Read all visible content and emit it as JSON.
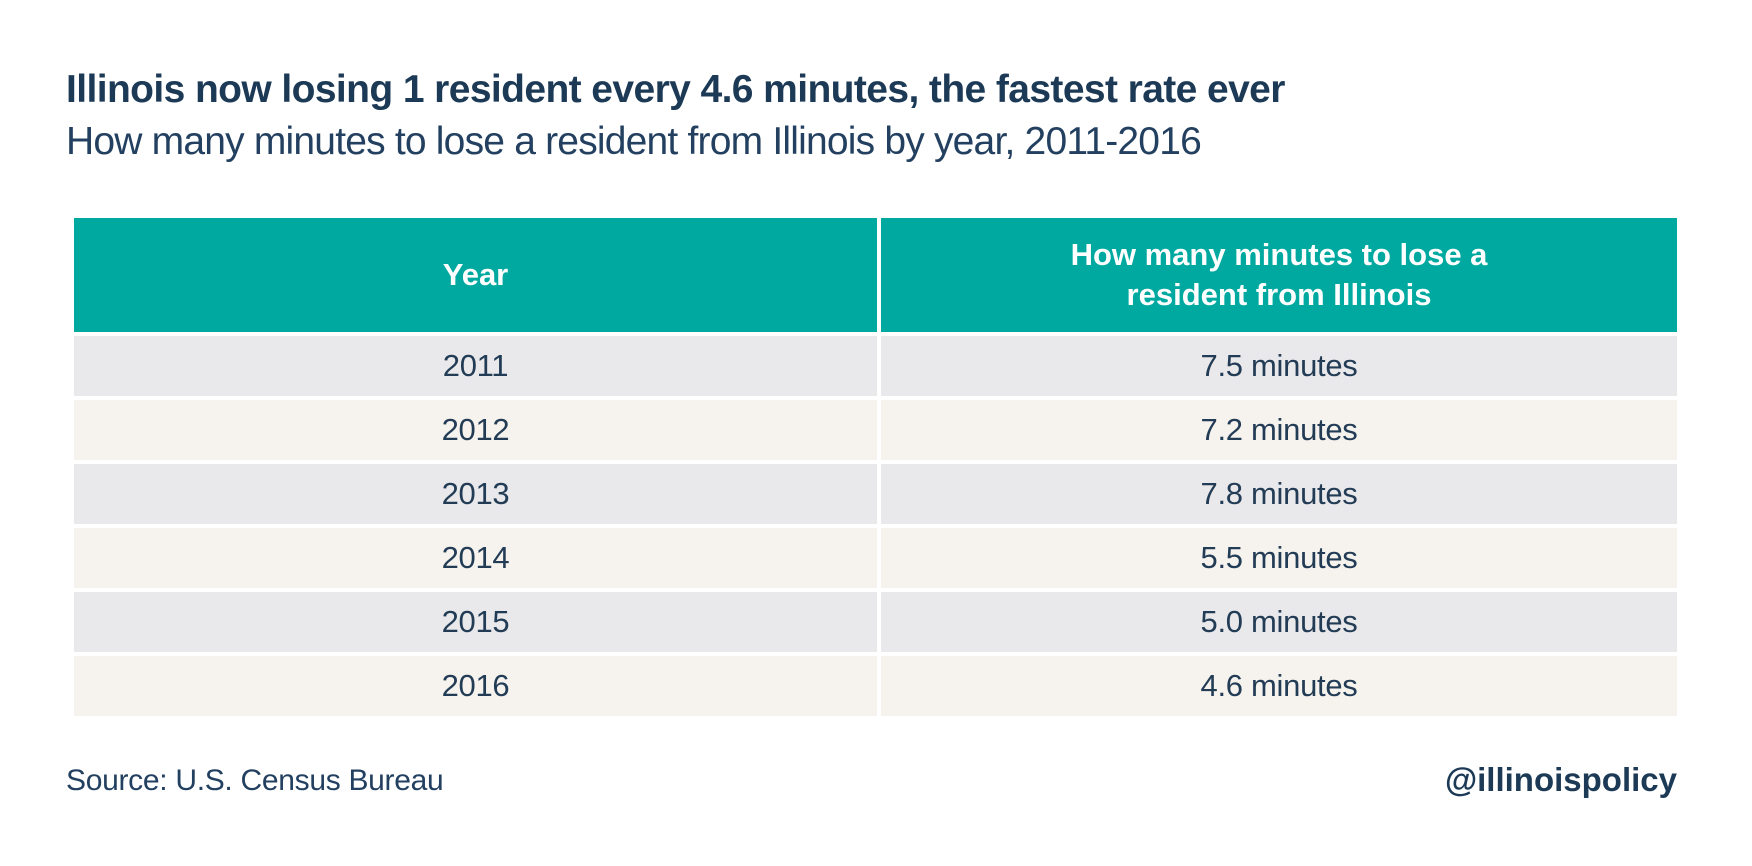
{
  "title": "Illinois now losing 1 resident every 4.6 minutes, the fastest rate ever",
  "subtitle": "How many minutes to lose a resident from Illinois by year, 2011-2016",
  "table": {
    "headers": [
      "Year",
      "How many minutes to lose a resident from Illinois"
    ],
    "rows": [
      {
        "year": "2011",
        "minutes": "7.5 minutes"
      },
      {
        "year": "2012",
        "minutes": "7.2 minutes"
      },
      {
        "year": "2013",
        "minutes": "7.8 minutes"
      },
      {
        "year": "2014",
        "minutes": "5.5 minutes"
      },
      {
        "year": "2015",
        "minutes": "5.0 minutes"
      },
      {
        "year": "2016",
        "minutes": "4.6 minutes"
      }
    ]
  },
  "footer": {
    "source": "Source: U.S. Census Bureau",
    "handle": "@illinoispolicy"
  },
  "colors": {
    "header_teal": "#00a9a0",
    "title_navy": "#1c3a56",
    "row_gray": "#e9e8ea",
    "row_cream": "#f6f3ee",
    "background": "#ffffff"
  },
  "chart_data": {
    "type": "table",
    "title": "Illinois now losing 1 resident every 4.6 minutes, the fastest rate ever",
    "subtitle": "How many minutes to lose a resident from Illinois by year, 2011-2016",
    "columns": [
      "Year",
      "How many minutes to lose a resident from Illinois"
    ],
    "categories": [
      "2011",
      "2012",
      "2013",
      "2014",
      "2015",
      "2016"
    ],
    "values": [
      7.5,
      7.2,
      7.8,
      5.5,
      5.0,
      4.6
    ],
    "unit": "minutes",
    "source": "U.S. Census Bureau",
    "legend": "none",
    "grid": "off"
  }
}
